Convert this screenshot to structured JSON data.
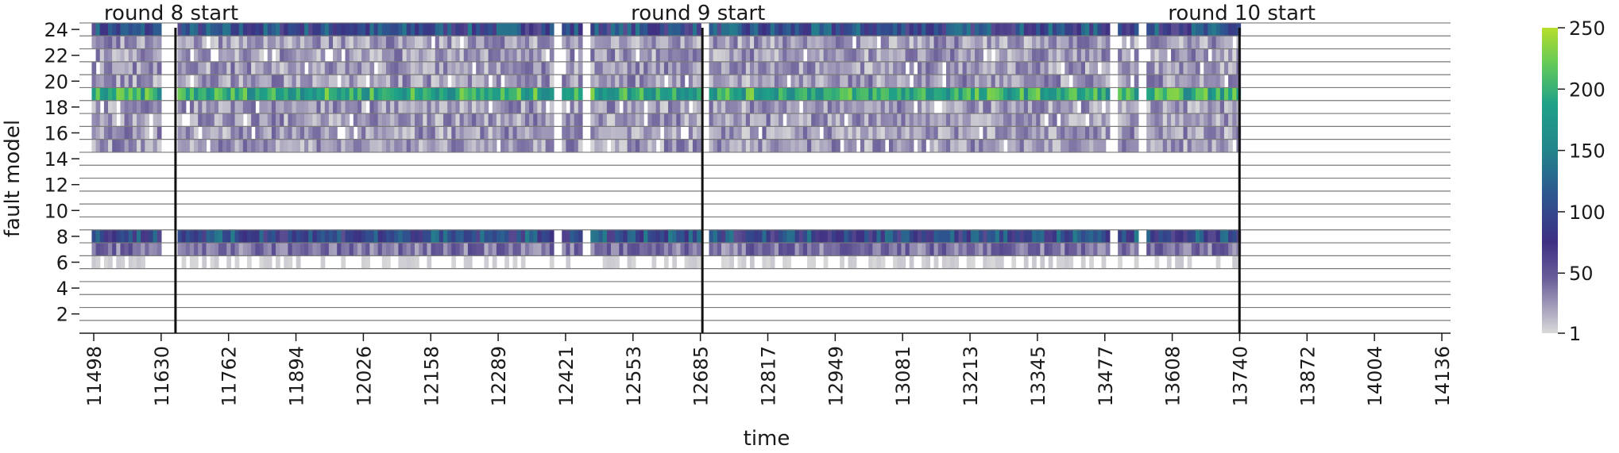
{
  "chart_data": {
    "type": "heatmap",
    "xlabel": "time",
    "ylabel": "fault model",
    "x_range": [
      11498,
      14136
    ],
    "y_ticks": [
      2,
      4,
      6,
      8,
      10,
      12,
      14,
      16,
      18,
      20,
      22,
      24
    ],
    "x_ticks": [
      "11498",
      "11630",
      "11762",
      "11894",
      "12026",
      "12158",
      "12289",
      "12421",
      "12553",
      "12685",
      "12817",
      "12949",
      "13081",
      "13213",
      "13345",
      "13477",
      "13608",
      "13740",
      "13872",
      "14004",
      "14136"
    ],
    "colorbar": {
      "ticks": [
        "1",
        "50",
        "100",
        "150",
        "200",
        "250"
      ],
      "min": 1,
      "max": 250,
      "colormap": "light-gray to purple to teal to green (viridis variant)"
    },
    "grid": "horizontal",
    "rounds": [
      {
        "label": "round 8 start",
        "time": 11658
      },
      {
        "label": "round 9 start",
        "time": 12689
      },
      {
        "label": "round 10 start",
        "time": 13740
      }
    ],
    "active_period": [
      11498,
      13740
    ],
    "rows": [
      {
        "fault_model": 24,
        "level": "high"
      },
      {
        "fault_model": 23,
        "level": "low"
      },
      {
        "fault_model": 22,
        "level": "low"
      },
      {
        "fault_model": 21,
        "level": "low"
      },
      {
        "fault_model": 20,
        "level": "low"
      },
      {
        "fault_model": 19,
        "level": "very high"
      },
      {
        "fault_model": 18,
        "level": "low"
      },
      {
        "fault_model": 17,
        "level": "low"
      },
      {
        "fault_model": 16,
        "level": "low"
      },
      {
        "fault_model": 15,
        "level": "low"
      },
      {
        "fault_model": 8,
        "level": "high"
      },
      {
        "fault_model": 7,
        "level": "medium"
      },
      {
        "fault_model": 6,
        "level": "very low"
      }
    ]
  }
}
